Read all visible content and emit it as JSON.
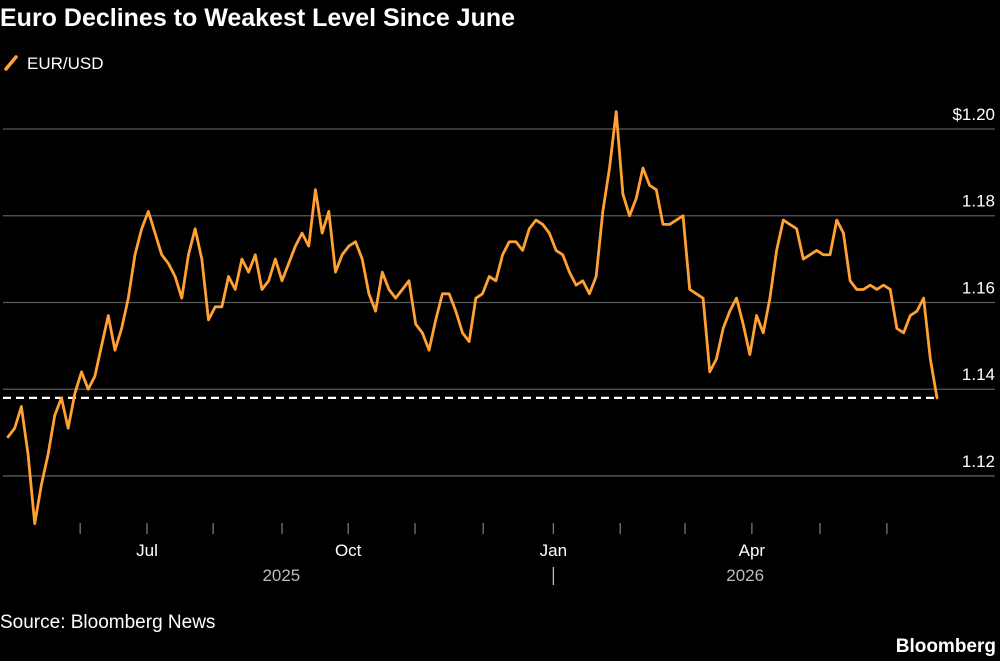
{
  "chart_data": {
    "type": "line",
    "title": "Euro Declines to Weakest Level Since June",
    "source": "Source: Bloomberg News",
    "brand": "Bloomberg",
    "series": [
      {
        "name": "EUR/USD",
        "color": "#ffa133",
        "values": [
          1.129,
          1.131,
          1.136,
          1.125,
          1.109,
          1.118,
          1.125,
          1.134,
          1.138,
          1.131,
          1.139,
          1.144,
          1.14,
          1.143,
          1.15,
          1.157,
          1.149,
          1.154,
          1.161,
          1.171,
          1.177,
          1.181,
          1.176,
          1.171,
          1.169,
          1.166,
          1.161,
          1.171,
          1.177,
          1.17,
          1.156,
          1.159,
          1.159,
          1.166,
          1.163,
          1.17,
          1.167,
          1.171,
          1.163,
          1.165,
          1.17,
          1.165,
          1.169,
          1.173,
          1.176,
          1.173,
          1.186,
          1.176,
          1.181,
          1.167,
          1.171,
          1.173,
          1.174,
          1.17,
          1.162,
          1.158,
          1.167,
          1.163,
          1.161,
          1.163,
          1.165,
          1.155,
          1.153,
          1.149,
          1.156,
          1.162,
          1.162,
          1.158,
          1.153,
          1.151,
          1.161,
          1.162,
          1.166,
          1.165,
          1.171,
          1.174,
          1.174,
          1.172,
          1.177,
          1.179,
          1.178,
          1.176,
          1.172,
          1.171,
          1.167,
          1.164,
          1.165,
          1.162,
          1.166,
          1.181,
          1.191,
          1.204,
          1.185,
          1.18,
          1.184,
          1.191,
          1.187,
          1.186,
          1.178,
          1.178,
          1.179,
          1.18,
          1.163,
          1.162,
          1.161,
          1.144,
          1.147,
          1.154,
          1.158,
          1.161,
          1.155,
          1.148,
          1.157,
          1.153,
          1.161,
          1.172,
          1.179,
          1.178,
          1.177,
          1.17,
          1.171,
          1.172,
          1.171,
          1.171,
          1.179,
          1.176,
          1.165,
          1.163,
          1.163,
          1.164,
          1.163,
          1.164,
          1.163,
          1.154,
          1.153,
          1.157,
          1.158,
          1.161,
          1.147,
          1.138
        ]
      }
    ],
    "reference_line": 1.138,
    "xlim": [
      0,
      139
    ],
    "xticks": [
      {
        "value": 20.8,
        "label": "Jul"
      },
      {
        "value": 50.9,
        "label": "Oct"
      },
      {
        "value": 81.6,
        "label": "Jan"
      },
      {
        "value": 111.3,
        "label": "Apr"
      }
    ],
    "x_minor_ticks": [
      10.8,
      30.7,
      41.0,
      60.9,
      71.1,
      91.6,
      101.3,
      121.5,
      131.5
    ],
    "year_labels": [
      {
        "value": 40.9,
        "label": "2025"
      },
      {
        "value": 110.3,
        "label": "2026"
      }
    ],
    "year_divider": 81.6,
    "ylim": [
      1.108,
      1.204
    ],
    "yticks": [
      {
        "value": 1.2,
        "label": "$1.20"
      },
      1.18,
      1.16,
      1.14,
      1.12
    ],
    "grid": true
  }
}
